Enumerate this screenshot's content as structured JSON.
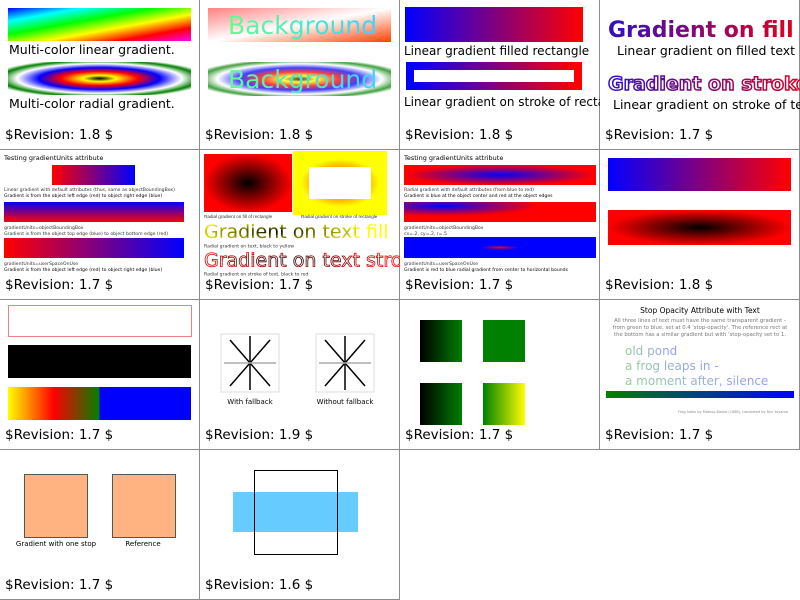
{
  "cells": [
    {
      "revision": "$Revision: 1.8 $",
      "texts": [
        "Multi-color linear gradient.",
        "Multi-color radial gradient."
      ]
    },
    {
      "revision": "$Revision: 1.8 $",
      "texts": [
        "Background",
        "Background"
      ]
    },
    {
      "revision": "$Revision: 1.8 $",
      "texts": [
        "Linear gradient filled rectangle",
        "Linear gradient on stroke of rectangle"
      ]
    },
    {
      "revision": "$Revision: 1.7 $",
      "texts": [
        "Gradient on fill",
        "Linear gradient on filled text",
        "Gradient on stroke",
        "Linear gradient on stroke of text"
      ]
    },
    {
      "revision": "$Revision: 1.7 $",
      "texts": [
        "Testing gradientUnits attribute",
        "Linear gradient with default attributes (thus, same as objectBoundingBox)",
        "Gradient is from the object left edge (red) to object right edge (blue)",
        "gradientUnits=objectBoundingBox",
        "Gradient is from the object top edge (blue) to object bottom edge (red)",
        "gradientUnits=userSpaceOnUse",
        "Gradient is from the object left edge (red) to object right edge (blue)"
      ]
    },
    {
      "revision": "$Revision: 1.7 $",
      "texts": [
        "Radial gradient on fill of rectangle",
        "Radial gradient on stroke of rectangle",
        "Gradient on text fill",
        "Radial gradient on text, black to yellow",
        "Gradient on text stroke",
        "Radial gradient on stroke of text, black to red"
      ]
    },
    {
      "revision": "$Revision: 1.7 $",
      "texts": [
        "Testing gradientUnits attribute",
        "Radial gradient with default attributes (from blue to red)",
        "Gradient is blue at the object center and red at the object edges",
        "gradientUnits=objectBoundingBox",
        "cx=.2, cy=.2, r=.5",
        "gradientUnits=userSpaceOnUse",
        "Gradient is red to blue radial gradient from center to horizontal bounds"
      ]
    },
    {
      "revision": "$Revision: 1.8 $",
      "texts": []
    },
    {
      "revision": "$Revision: 1.7 $",
      "texts": []
    },
    {
      "revision": "$Revision: 1.9 $",
      "texts": [
        "With fallback",
        "Without fallback"
      ]
    },
    {
      "revision": "$Revision: 1.7 $",
      "texts": []
    },
    {
      "revision": "$Revision: 1.7 $",
      "texts": [
        "Stop Opacity Attribute with Text",
        "All three lines of text must have the same transparent gradient -",
        "from green to blue, set at 0.4 'stop-opacity'. The reference rect at",
        "the bottom has a similar gradient but with 'stop-opacity set to 1.",
        "old pond",
        "a frog leaps in -",
        "a moment after, silence",
        "Frog haiku by Matsuo Basho (1686), translated by Ryu Yuyama"
      ]
    },
    {
      "revision": "$Revision: 1.7 $",
      "texts": [
        "Gradient with one stop",
        "Reference"
      ]
    },
    {
      "revision": "$Revision: 1.6 $",
      "texts": []
    }
  ],
  "colors": {
    "border": "#8c8c8c",
    "orange": "#ffb380",
    "light_blue": "#66ccff"
  }
}
